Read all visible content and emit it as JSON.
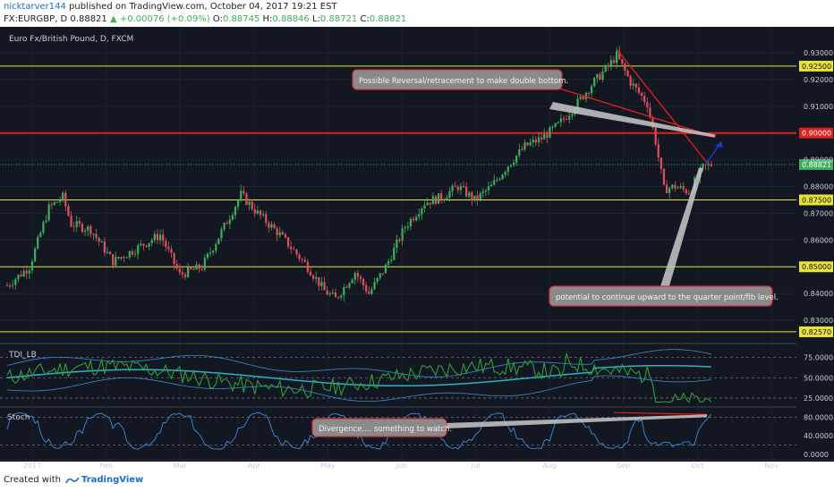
{
  "header": {
    "user": "nicktarver144",
    "published_text": " published on TradingView.com, October 04, 2017 19:21 EST",
    "symbol_line": "FX:EURGBP, D  0.88821",
    "change": "▲ +0.00076 (+0.09%)",
    "o_label": "O:",
    "o_value": "0.88745",
    "h_label": "H:",
    "h_value": "0.88846",
    "l_label": "L:",
    "l_value": "0.88721",
    "c_label": "C:",
    "c_value": "0.88821"
  },
  "footer": {
    "created_with": "Created with",
    "brand": "TradingView"
  },
  "colors": {
    "background": "#131722",
    "up": "#3fae5a",
    "down": "#e0505e",
    "yellow_line": "#e8e33a",
    "red_line": "#e02020",
    "stoch": "#3f8ad8",
    "tdi_green": "#2e9e3a"
  },
  "chart_data": [
    {
      "type": "candlestick",
      "title": "Euro Fx/British Pound, D, FXCM",
      "x_ticks": [
        "2017",
        "Feb",
        "Mar",
        "Apr",
        "May",
        "Jun",
        "Jul",
        "Aug",
        "Sep",
        "Oct",
        "Nov"
      ],
      "y_ticks": [
        "0.93000",
        "0.92000",
        "0.91000",
        "0.89000",
        "0.88000",
        "0.87000",
        "0.86000",
        "0.84000",
        "0.83000"
      ],
      "ylim": [
        0.822,
        0.935
      ],
      "last_price": "0.88821",
      "price_path": [
        [
          0,
          0.843
        ],
        [
          8,
          0.85
        ],
        [
          15,
          0.872
        ],
        [
          20,
          0.876
        ],
        [
          23,
          0.866
        ],
        [
          30,
          0.864
        ],
        [
          38,
          0.852
        ],
        [
          45,
          0.856
        ],
        [
          55,
          0.862
        ],
        [
          62,
          0.847
        ],
        [
          70,
          0.85
        ],
        [
          78,
          0.865
        ],
        [
          84,
          0.877
        ],
        [
          90,
          0.87
        ],
        [
          98,
          0.862
        ],
        [
          108,
          0.85
        ],
        [
          114,
          0.841
        ],
        [
          118,
          0.838
        ],
        [
          125,
          0.848
        ],
        [
          130,
          0.84
        ],
        [
          136,
          0.85
        ],
        [
          143,
          0.865
        ],
        [
          150,
          0.874
        ],
        [
          156,
          0.876
        ],
        [
          162,
          0.88
        ],
        [
          168,
          0.875
        ],
        [
          174,
          0.88
        ],
        [
          180,
          0.888
        ],
        [
          186,
          0.895
        ],
        [
          192,
          0.898
        ],
        [
          198,
          0.903
        ],
        [
          204,
          0.91
        ],
        [
          210,
          0.918
        ],
        [
          216,
          0.925
        ],
        [
          219,
          0.929
        ],
        [
          224,
          0.919
        ],
        [
          230,
          0.911
        ],
        [
          233,
          0.897
        ],
        [
          236,
          0.879
        ],
        [
          240,
          0.88
        ],
        [
          245,
          0.878
        ],
        [
          250,
          0.887
        ],
        [
          253,
          0.8882
        ]
      ],
      "levels": [
        {
          "label": "0.92500",
          "value": 0.925,
          "color": "yellow"
        },
        {
          "label": "0.90000",
          "value": 0.9,
          "color": "red"
        },
        {
          "label": "0.87500",
          "value": 0.875,
          "color": "yellow"
        },
        {
          "label": "0.85000",
          "value": 0.85,
          "color": "yellow"
        },
        {
          "label": "0.82570",
          "value": 0.8257,
          "color": "yellow"
        }
      ],
      "annotations": [
        {
          "text": "Possible Reversal/retracement to make double bottom."
        },
        {
          "text": "potential to continue upward to the quarter point/fib level."
        }
      ]
    },
    {
      "type": "line",
      "title": "TDI_LB",
      "y_ticks": [
        "75.0000",
        "50.0000",
        "25.0000"
      ],
      "ylim": [
        15,
        90
      ]
    },
    {
      "type": "line",
      "title": "Stoch",
      "y_ticks": [
        "80.0000",
        "40.0000",
        "0.0000"
      ],
      "ylim": [
        -8,
        100
      ],
      "annotations": [
        {
          "text": "Divergence.... something to watch."
        }
      ]
    }
  ]
}
